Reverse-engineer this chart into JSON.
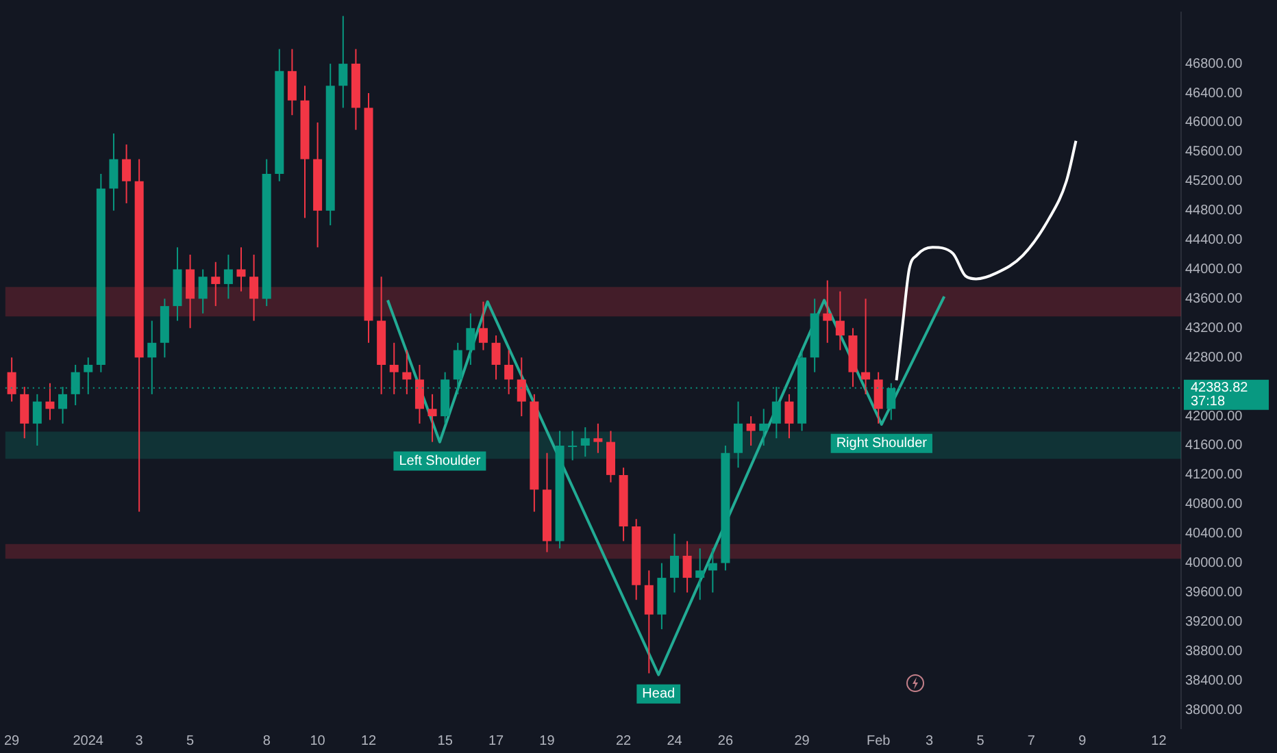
{
  "chart_data": {
    "type": "candlestick",
    "x": [
      "2023-12-29T00:00",
      "2023-12-29T12:00",
      "2023-12-30T00:00",
      "2023-12-30T12:00",
      "2023-12-31T00:00",
      "2023-12-31T12:00",
      "2024-01-01T00:00",
      "2024-01-01T12:00",
      "2024-01-02T00:00",
      "2024-01-02T12:00",
      "2024-01-03T00:00",
      "2024-01-03T12:00",
      "2024-01-04T00:00",
      "2024-01-04T12:00",
      "2024-01-05T00:00",
      "2024-01-05T12:00",
      "2024-01-06T00:00",
      "2024-01-06T12:00",
      "2024-01-07T00:00",
      "2024-01-07T12:00",
      "2024-01-08T00:00",
      "2024-01-08T12:00",
      "2024-01-09T00:00",
      "2024-01-09T12:00",
      "2024-01-10T00:00",
      "2024-01-10T12:00",
      "2024-01-11T00:00",
      "2024-01-11T12:00",
      "2024-01-12T00:00",
      "2024-01-12T12:00",
      "2024-01-13T00:00",
      "2024-01-13T12:00",
      "2024-01-14T00:00",
      "2024-01-14T12:00",
      "2024-01-15T00:00",
      "2024-01-15T12:00",
      "2024-01-16T00:00",
      "2024-01-16T12:00",
      "2024-01-17T00:00",
      "2024-01-17T12:00",
      "2024-01-18T00:00",
      "2024-01-18T12:00",
      "2024-01-19T00:00",
      "2024-01-19T12:00",
      "2024-01-20T00:00",
      "2024-01-20T12:00",
      "2024-01-21T00:00",
      "2024-01-21T12:00",
      "2024-01-22T00:00",
      "2024-01-22T12:00",
      "2024-01-23T00:00",
      "2024-01-23T12:00",
      "2024-01-24T00:00",
      "2024-01-24T12:00",
      "2024-01-25T00:00",
      "2024-01-25T12:00",
      "2024-01-26T00:00",
      "2024-01-26T12:00",
      "2024-01-27T00:00",
      "2024-01-27T12:00",
      "2024-01-28T00:00",
      "2024-01-28T12:00",
      "2024-01-29T00:00",
      "2024-01-29T12:00",
      "2024-01-30T00:00",
      "2024-01-30T12:00",
      "2024-01-31T00:00",
      "2024-01-31T12:00",
      "2024-02-01T00:00",
      "2024-02-01T12:00"
    ],
    "ohlc": [
      [
        42600,
        42800,
        42200,
        42300
      ],
      [
        42300,
        42400,
        41700,
        41900
      ],
      [
        41900,
        42300,
        41600,
        42200
      ],
      [
        42200,
        42450,
        41950,
        42100
      ],
      [
        42100,
        42400,
        41900,
        42300
      ],
      [
        42300,
        42700,
        42150,
        42600
      ],
      [
        42600,
        42800,
        42300,
        42700
      ],
      [
        42700,
        45300,
        42600,
        45100
      ],
      [
        45100,
        45850,
        44800,
        45500
      ],
      [
        45500,
        45700,
        44900,
        45200
      ],
      [
        45200,
        45500,
        40700,
        42800
      ],
      [
        42800,
        43300,
        42300,
        43000
      ],
      [
        43000,
        43600,
        42800,
        43500
      ],
      [
        43500,
        44300,
        43300,
        44000
      ],
      [
        44000,
        44200,
        43200,
        43600
      ],
      [
        43600,
        44000,
        43400,
        43900
      ],
      [
        43900,
        44100,
        43500,
        43800
      ],
      [
        43800,
        44200,
        43600,
        44000
      ],
      [
        44000,
        44300,
        43700,
        43900
      ],
      [
        43900,
        44200,
        43300,
        43600
      ],
      [
        43600,
        45500,
        43500,
        45300
      ],
      [
        45300,
        47000,
        45200,
        46700
      ],
      [
        46700,
        47000,
        46100,
        46300
      ],
      [
        46300,
        46500,
        44700,
        45500
      ],
      [
        45500,
        46000,
        44300,
        44800
      ],
      [
        44800,
        46800,
        44600,
        46500
      ],
      [
        46500,
        47450,
        46200,
        46800
      ],
      [
        46800,
        47000,
        45900,
        46200
      ],
      [
        46200,
        46400,
        43000,
        43300
      ],
      [
        43300,
        43900,
        42300,
        42700
      ],
      [
        42700,
        43000,
        42300,
        42600
      ],
      [
        42600,
        42900,
        42300,
        42500
      ],
      [
        42500,
        42700,
        41900,
        42100
      ],
      [
        42100,
        42300,
        41650,
        42000
      ],
      [
        42000,
        42600,
        41900,
        42500
      ],
      [
        42500,
        43000,
        42300,
        42900
      ],
      [
        42900,
        43400,
        42700,
        43200
      ],
      [
        43200,
        43560,
        42900,
        43000
      ],
      [
        43000,
        43100,
        42500,
        42700
      ],
      [
        42700,
        42900,
        42300,
        42500
      ],
      [
        42500,
        42800,
        42000,
        42200
      ],
      [
        42200,
        42300,
        40700,
        41000
      ],
      [
        41000,
        41500,
        40150,
        40300
      ],
      [
        40300,
        41800,
        40200,
        41600
      ],
      [
        41600,
        41800,
        41400,
        41600
      ],
      [
        41600,
        41850,
        41450,
        41700
      ],
      [
        41700,
        41900,
        41500,
        41650
      ],
      [
        41650,
        41800,
        41100,
        41200
      ],
      [
        41200,
        41300,
        40300,
        40500
      ],
      [
        40500,
        40600,
        39500,
        39700
      ],
      [
        39700,
        39900,
        38500,
        39300
      ],
      [
        39300,
        40000,
        39100,
        39800
      ],
      [
        39800,
        40400,
        39600,
        40100
      ],
      [
        40100,
        40300,
        39600,
        39800
      ],
      [
        39800,
        40200,
        39500,
        39900
      ],
      [
        39900,
        40200,
        39600,
        40000
      ],
      [
        40000,
        41600,
        39900,
        41500
      ],
      [
        41500,
        42200,
        41300,
        41900
      ],
      [
        41900,
        42000,
        41600,
        41800
      ],
      [
        41800,
        42100,
        41600,
        41900
      ],
      [
        41900,
        42400,
        41700,
        42200
      ],
      [
        42200,
        42300,
        41700,
        41900
      ],
      [
        41900,
        42900,
        41800,
        42800
      ],
      [
        42800,
        43600,
        42600,
        43400
      ],
      [
        43400,
        43850,
        43000,
        43300
      ],
      [
        43300,
        43700,
        42900,
        43100
      ],
      [
        43100,
        43200,
        42400,
        42600
      ],
      [
        42600,
        43600,
        42300,
        42500
      ],
      [
        42500,
        42600,
        41900,
        42100
      ],
      [
        42100,
        42450,
        41950,
        42383.82
      ]
    ],
    "series": [
      {
        "type": "line",
        "color": "#22ab94",
        "x": [
          "2024-01-12T18:00",
          "2024-01-14T19:00",
          "2024-01-16T16:00",
          "2024-01-23T09:00",
          "2024-01-29T21:00",
          "2024-02-01T03:00",
          "2024-02-03T14:00"
        ],
        "values": [
          43580,
          41650,
          43560,
          38480,
          43580,
          41890,
          43630
        ]
      },
      {
        "type": "line",
        "color": "#ffffff",
        "x": [
          "2024-02-01T17:00",
          "2024-02-01T23:00",
          "2024-02-02T05:00",
          "2024-02-02T12:00",
          "2024-02-03T03:00",
          "2024-02-03T22:00",
          "2024-02-04T10:00",
          "2024-02-04T20:00",
          "2024-02-05T15:00",
          "2024-02-06T16:00",
          "2024-02-07T17:00",
          "2024-02-08T09:00",
          "2024-02-08T18:00"
        ],
        "values": [
          42490,
          43270,
          44000,
          44190,
          44300,
          44220,
          43910,
          43870,
          43950,
          44190,
          44700,
          45200,
          45750
        ]
      }
    ],
    "bands": [
      {
        "axis": "y",
        "from": 43360,
        "to": 43760,
        "color": "#f23645"
      },
      {
        "axis": "y",
        "from": 41420,
        "to": 41790,
        "color": "#089981"
      },
      {
        "axis": "y",
        "from": 40060,
        "to": 40260,
        "color": "#f23645"
      }
    ],
    "ref_lines": [
      {
        "axis": "y",
        "value": 42383.82,
        "label": "42383.82",
        "color": "#089981",
        "line_style": "dotted"
      }
    ],
    "annotations": [
      {
        "text": "Left Shoulder",
        "x": "2024-01-14T19:00",
        "y": 41650
      },
      {
        "text": "Head",
        "x": "2024-01-23T09:00",
        "y": 38480
      },
      {
        "text": "Right Shoulder",
        "x": "2024-02-01T03:00",
        "y": 41890
      },
      "37:18"
    ],
    "xlim": [
      "2023-12-28T18:00",
      "2024-02-12T21:00"
    ],
    "xticks": [
      {
        "value": "2023-12-29",
        "label": "29"
      },
      {
        "value": "2024-01-01",
        "label": "2024"
      },
      {
        "value": "2024-01-03",
        "label": "3"
      },
      {
        "value": "2024-01-05",
        "label": "5"
      },
      {
        "value": "2024-01-08",
        "label": "8"
      },
      {
        "value": "2024-01-10",
        "label": "10"
      },
      {
        "value": "2024-01-12",
        "label": "12"
      },
      {
        "value": "2024-01-15",
        "label": "15"
      },
      {
        "value": "2024-01-17",
        "label": "17"
      },
      {
        "value": "2024-01-19",
        "label": "19"
      },
      {
        "value": "2024-01-22",
        "label": "22"
      },
      {
        "value": "2024-01-24",
        "label": "24"
      },
      {
        "value": "2024-01-26",
        "label": "26"
      },
      {
        "value": "2024-01-29",
        "label": "29"
      },
      {
        "value": "2024-02-01",
        "label": "Feb"
      },
      {
        "value": "2024-02-03",
        "label": "3"
      },
      {
        "value": "2024-02-05",
        "label": "5"
      },
      {
        "value": "2024-02-07",
        "label": "7"
      },
      {
        "value": "2024-02-09",
        "label": "9"
      },
      {
        "value": "2024-02-12",
        "label": "12"
      }
    ],
    "ylim": [
      37750,
      47500
    ],
    "yticks": [
      {
        "value": 38000,
        "label": "38000.00"
      },
      {
        "value": 38400,
        "label": "38400.00"
      },
      {
        "value": 38800,
        "label": "38800.00"
      },
      {
        "value": 39200,
        "label": "39200.00"
      },
      {
        "value": 39600,
        "label": "39600.00"
      },
      {
        "value": 40000,
        "label": "40000.00"
      },
      {
        "value": 40400,
        "label": "40400.00"
      },
      {
        "value": 40800,
        "label": "40800.00"
      },
      {
        "value": 41200,
        "label": "41200.00"
      },
      {
        "value": 41600,
        "label": "41600.00"
      },
      {
        "value": 42000,
        "label": "42000.00"
      },
      {
        "value": 42800,
        "label": "42800.00"
      },
      {
        "value": 43200,
        "label": "43200.00"
      },
      {
        "value": 43600,
        "label": "43600.00"
      },
      {
        "value": 44000,
        "label": "44000.00"
      },
      {
        "value": 44400,
        "label": "44400.00"
      },
      {
        "value": 44800,
        "label": "44800.00"
      },
      {
        "value": 45200,
        "label": "45200.00"
      },
      {
        "value": 45600,
        "label": "45600.00"
      },
      {
        "value": 46000,
        "label": "46000.00"
      },
      {
        "value": 46400,
        "label": "46400.00"
      },
      {
        "value": 46800,
        "label": "46800.00"
      }
    ],
    "grid": false,
    "legend": false,
    "marker": "none"
  }
}
